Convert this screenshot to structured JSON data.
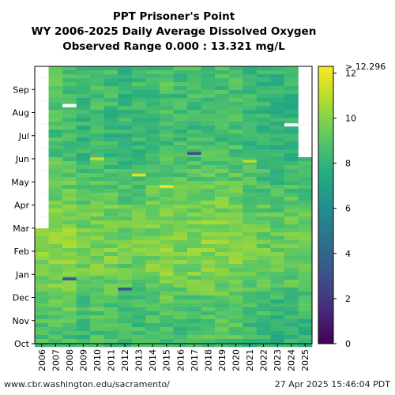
{
  "chart_data": {
    "type": "heatmap",
    "title_lines": [
      "PPT Prisoner's Point",
      "WY 2006-2025 Daily Average Dissolved Oxygen",
      "Observed Range 0.000 : 13.321 mg/L"
    ],
    "x_categories": [
      "2006",
      "2007",
      "2008",
      "2009",
      "2010",
      "2011",
      "2012",
      "2013",
      "2014",
      "2015",
      "2016",
      "2017",
      "2018",
      "2019",
      "2020",
      "2021",
      "2022",
      "2023",
      "2024",
      "2025"
    ],
    "y_months": [
      "Oct",
      "Nov",
      "Dec",
      "Jan",
      "Feb",
      "Mar",
      "Apr",
      "May",
      "Jun",
      "Jul",
      "Aug",
      "Sep"
    ],
    "colorbar": {
      "min": 0,
      "max": 12.296,
      "ticks": [
        "0",
        "2",
        "4",
        "6",
        "8",
        "10",
        "12"
      ],
      "top_label": "> 12.296",
      "colormap": "viridis"
    },
    "grid": "dotted-horizontal",
    "data_start_2006": "Mar",
    "data_end_2025": "May",
    "typical_values": {
      "Oct": 8.4,
      "Nov": 8.6,
      "Dec": 8.9,
      "Jan": 9.5,
      "Feb": 9.8,
      "Mar": 9.7,
      "Apr": 9.3,
      "May": 8.9,
      "Jun": 8.4,
      "Jul": 8.2,
      "Aug": 8.3,
      "Sep": 8.4
    },
    "notable_values": [
      {
        "year": "2008",
        "date": "Aug 10",
        "value": 0.0,
        "note": "gap"
      },
      {
        "year": "2006",
        "date": "Sep 20",
        "value": 0.0,
        "note": "gap"
      },
      {
        "year": "2024",
        "date": "Jul 15",
        "value": 0.0,
        "note": "gap"
      },
      {
        "year": "2008",
        "date": "Dec 25",
        "value": 3.5
      },
      {
        "year": "2012",
        "date": "Dec 12",
        "value": 3.2
      },
      {
        "year": "2017",
        "date": "Jun 08",
        "value": 3.0
      },
      {
        "year": "2015",
        "date": "Apr 25",
        "value": 12.0
      },
      {
        "year": "2013",
        "date": "May 10",
        "value": 11.8
      },
      {
        "year": "2010",
        "date": "Jun 01",
        "value": 11.2
      },
      {
        "year": "2021",
        "date": "May 28",
        "value": 11.0
      }
    ]
  },
  "footer": {
    "left": "www.cbr.washington.edu/sacramento/",
    "right": "27 Apr 2025 15:46:04 PDT"
  }
}
